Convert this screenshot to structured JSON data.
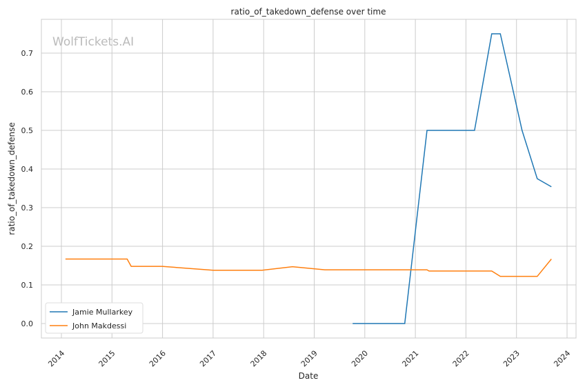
{
  "chart_data": {
    "type": "line",
    "title": "ratio_of_takedown_defense over time",
    "xlabel": "Date",
    "ylabel": "ratio_of_takedown_defense",
    "watermark": "WolfTickets.AI",
    "xlim": [
      2013.6,
      2024.2
    ],
    "ylim": [
      -0.038,
      0.785
    ],
    "xticks": [
      2014,
      2015,
      2016,
      2017,
      2018,
      2019,
      2020,
      2021,
      2022,
      2023,
      2024
    ],
    "xtick_labels": [
      "2014",
      "2015",
      "2016",
      "2017",
      "2018",
      "2019",
      "2020",
      "2021",
      "2022",
      "2023",
      "2024"
    ],
    "yticks": [
      0,
      0.1,
      0.2,
      0.3,
      0.4,
      0.5,
      0.6,
      0.7
    ],
    "ytick_labels": [
      "0.0",
      "0.1",
      "0.2",
      "0.3",
      "0.4",
      "0.5",
      "0.6",
      "0.7"
    ],
    "grid": true,
    "legend_position": "bottom-left",
    "series": [
      {
        "name": "Jamie Mullarkey",
        "color": "#1f77b4",
        "x": [
          2019.76,
          2020.79,
          2021.23,
          2022.17,
          2022.51,
          2022.68,
          2023.11,
          2023.41,
          2023.69
        ],
        "y": [
          0,
          0,
          0.5,
          0.5,
          0.75,
          0.75,
          0.5,
          0.375,
          0.354
        ]
      },
      {
        "name": "John Makdessi",
        "color": "#ff7f0e",
        "x": [
          2014.08,
          2015.3,
          2015.38,
          2015.99,
          2017.0,
          2017.97,
          2018.57,
          2019.21,
          2021.23,
          2021.27,
          2022.51,
          2022.68,
          2023.41,
          2023.69
        ],
        "y": [
          0.167,
          0.167,
          0.148,
          0.148,
          0.138,
          0.138,
          0.147,
          0.139,
          0.139,
          0.136,
          0.136,
          0.122,
          0.122,
          0.167
        ]
      }
    ]
  }
}
